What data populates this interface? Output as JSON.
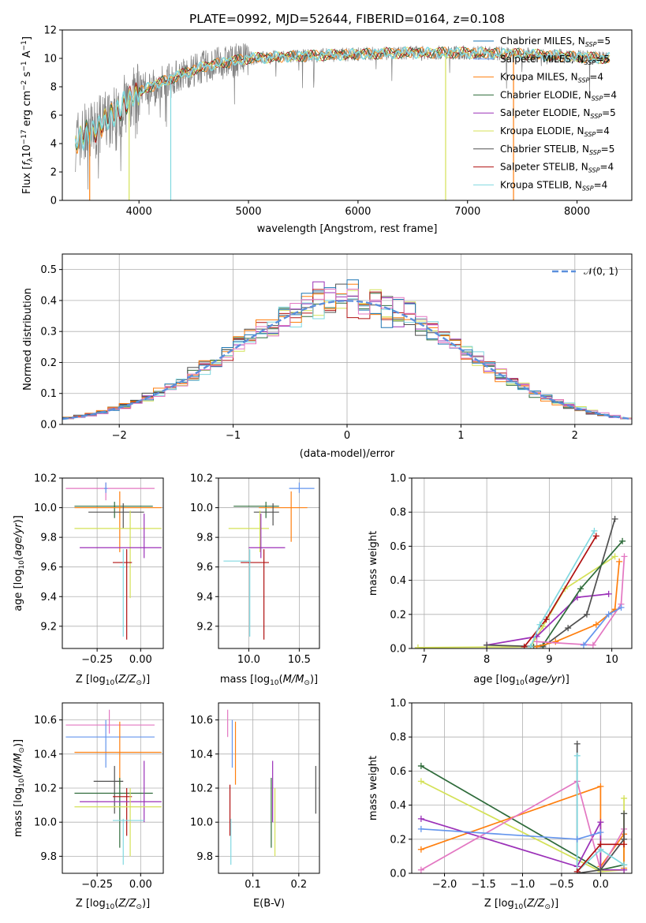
{
  "colors": {
    "Chabrier MILES": "#1f77b4",
    "Salpeter MILES": "#6495ed",
    "Kroupa MILES": "#ff7f0e",
    "Chabrier ELODIE": "#2e6b3a",
    "Salpeter ELODIE": "#9b30b8",
    "Kroupa ELODIE": "#d4e157",
    "Chabrier STELIB": "#505050",
    "Salpeter STELIB": "#b01010",
    "Kroupa STELIB": "#80d8e0",
    "pink": "#e377c2",
    "gauss": "#5b8fdc",
    "raw": "#808080",
    "green2": "#5a8a5a"
  },
  "chart_data": [
    {
      "id": "spectrum",
      "type": "line",
      "title": "PLATE=0992, MJD=52644, FIBERID=0164, z=0.108",
      "xlabel": "wavelength [Angstrom, rest frame]",
      "ylabel": "Flux [f_λ10^-17 erg cm^-2 s^-1 A^-1]",
      "xlim": [
        3300,
        8500
      ],
      "ylim": [
        0,
        12
      ],
      "xticks": [
        4000,
        5000,
        6000,
        7000,
        8000
      ],
      "yticks": [
        0,
        2,
        4,
        6,
        8,
        10,
        12
      ],
      "grid": false,
      "legend_position": "right",
      "legend": [
        {
          "pre": "Chabrier MILES, N",
          "sub": "SSP",
          "post": "=5"
        },
        {
          "pre": "Salpeter MILES, N",
          "sub": "SSP",
          "post": "=5"
        },
        {
          "pre": "Kroupa MILES, N",
          "sub": "SSP",
          "post": "=4"
        },
        {
          "pre": "Chabrier ELODIE, N",
          "sub": "SSP",
          "post": "=4"
        },
        {
          "pre": "Salpeter ELODIE, N",
          "sub": "SSP",
          "post": "=5"
        },
        {
          "pre": "Kroupa ELODIE, N",
          "sub": "SSP",
          "post": "=4"
        },
        {
          "pre": "Chabrier STELIB, N",
          "sub": "SSP",
          "post": "=5"
        },
        {
          "pre": "Salpeter STELIB, N",
          "sub": "SSP",
          "post": "=4"
        },
        {
          "pre": "Kroupa STELIB, N",
          "sub": "SSP",
          "post": "=4"
        }
      ],
      "continuum": {
        "x": [
          3420,
          3500,
          3600,
          3700,
          3800,
          3900,
          4000,
          4100,
          4300,
          4500,
          4700,
          5000,
          5300,
          5600,
          6000,
          6500,
          7000,
          7500,
          8000,
          8300
        ],
        "y": [
          4.2,
          4.6,
          5.0,
          5.6,
          6.3,
          7.0,
          7.6,
          8.0,
          8.6,
          9.2,
          9.6,
          10.0,
          10.1,
          10.2,
          10.3,
          10.4,
          10.4,
          10.3,
          10.1,
          10.0
        ]
      },
      "spikes_down": [
        {
          "x": 3550,
          "y": 0
        },
        {
          "x": 3910,
          "y": 0
        },
        {
          "x": 4290,
          "y": 0
        },
        {
          "x": 6800,
          "y": 0
        },
        {
          "x": 7420,
          "y": 0
        }
      ]
    },
    {
      "id": "residuals",
      "type": "histogram",
      "xlabel": "(data-model)/error",
      "ylabel": "Normed distribution",
      "xlim": [
        -2.5,
        2.5
      ],
      "ylim": [
        0,
        0.55
      ],
      "xticks": [
        -2,
        -1,
        0,
        1,
        2
      ],
      "yticks": [
        0.0,
        0.1,
        0.2,
        0.3,
        0.4,
        0.5
      ],
      "grid": true,
      "legend": [
        "N(0,1)"
      ],
      "legend_position": "top-right",
      "bin_width": 0.1
    },
    {
      "id": "age-vs-Z",
      "type": "scatter",
      "xlabel": "Z [log10(Z/Z_sun)]",
      "ylabel": "age [log10(age/yr)]",
      "xlim": [
        -0.45,
        0.13
      ],
      "ylim": [
        9.05,
        10.2
      ],
      "xticks": [
        -0.25,
        0.0
      ],
      "yticks": [
        9.2,
        9.4,
        9.6,
        9.8,
        10.0,
        10.2
      ],
      "grid": true,
      "points": [
        {
          "c": "pink",
          "x": -0.2,
          "xe": [
            -0.43,
            0.08
          ],
          "y": 10.13,
          "ye": [
            10.05,
            10.17
          ]
        },
        {
          "c": "Salpeter MILES",
          "x": -0.2,
          "xe": [
            -0.21,
            -0.19
          ],
          "y": 10.13,
          "ye": [
            10.1,
            10.17
          ]
        },
        {
          "c": "Chabrier ELODIE",
          "x": -0.15,
          "xe": [
            -0.38,
            0.07
          ],
          "y": 10.01,
          "ye": [
            9.93,
            10.04
          ]
        },
        {
          "c": "Kroupa MILES",
          "x": -0.12,
          "xe": [
            -0.38,
            0.12
          ],
          "y": 10.0,
          "ye": [
            9.7,
            10.11
          ]
        },
        {
          "c": "Chabrier STELIB",
          "x": -0.1,
          "xe": [
            -0.3,
            0.02
          ],
          "y": 9.97,
          "ye": [
            9.86,
            10.03
          ]
        },
        {
          "c": "Kroupa ELODIE",
          "x": -0.06,
          "xe": [
            -0.38,
            0.12
          ],
          "y": 9.86,
          "ye": [
            9.39,
            9.98
          ]
        },
        {
          "c": "Salpeter ELODIE",
          "x": 0.02,
          "xe": [
            -0.35,
            0.12
          ],
          "y": 9.73,
          "ye": [
            9.66,
            9.96
          ]
        },
        {
          "c": "Salpeter STELIB",
          "x": -0.08,
          "xe": [
            -0.16,
            -0.05
          ],
          "y": 9.63,
          "ye": [
            9.11,
            9.72
          ]
        },
        {
          "c": "Kroupa STELIB",
          "x": -0.1,
          "xe": [
            -0.12,
            -0.09
          ],
          "y": 9.6,
          "ye": [
            9.13,
            9.72
          ]
        }
      ]
    },
    {
      "id": "age-vs-mass",
      "type": "scatter",
      "xlabel": "mass [log10(M/M_sun)]",
      "ylabel": "",
      "xlim": [
        9.7,
        10.7
      ],
      "ylim": [
        9.05,
        10.2
      ],
      "xticks": [
        10.0,
        10.5
      ],
      "yticks": [
        9.2,
        9.4,
        9.6,
        9.8,
        10.0,
        10.2
      ],
      "grid": true,
      "points": [
        {
          "c": "Salpeter MILES",
          "x": 10.5,
          "xe": [
            10.4,
            10.65
          ],
          "y": 10.13,
          "ye": [
            10.1,
            10.17
          ]
        },
        {
          "c": "Chabrier ELODIE",
          "x": 10.17,
          "xe": [
            9.85,
            10.3
          ],
          "y": 10.01,
          "ye": [
            9.93,
            10.04
          ]
        },
        {
          "c": "Kroupa MILES",
          "x": 10.42,
          "xe": [
            10.1,
            10.58
          ],
          "y": 10.0,
          "ye": [
            9.77,
            10.11
          ]
        },
        {
          "c": "Chabrier STELIB",
          "x": 10.24,
          "xe": [
            10.05,
            10.3
          ],
          "y": 9.97,
          "ye": [
            9.88,
            10.03
          ]
        },
        {
          "c": "Kroupa ELODIE",
          "x": 10.11,
          "xe": [
            9.8,
            10.2
          ],
          "y": 9.86,
          "ye": [
            9.7,
            9.98
          ]
        },
        {
          "c": "Salpeter ELODIE",
          "x": 10.12,
          "xe": [
            10.0,
            10.36
          ],
          "y": 9.73,
          "ye": [
            9.66,
            9.96
          ]
        },
        {
          "c": "Salpeter STELIB",
          "x": 10.15,
          "xe": [
            9.92,
            10.2
          ],
          "y": 9.63,
          "ye": [
            9.11,
            9.72
          ]
        },
        {
          "c": "Kroupa STELIB",
          "x": 10.01,
          "xe": [
            9.75,
            10.02
          ],
          "y": 9.64,
          "ye": [
            9.13,
            9.72
          ]
        }
      ]
    },
    {
      "id": "weight-vs-age",
      "type": "line",
      "xlabel": "age [log10(age/yr)]",
      "ylabel": "mass weight",
      "xlim": [
        6.8,
        10.32
      ],
      "ylim": [
        0,
        1
      ],
      "xticks": [
        7,
        8,
        9,
        10
      ],
      "yticks": [
        0.0,
        0.2,
        0.4,
        0.6,
        0.8,
        1.0
      ],
      "grid": true,
      "series": [
        {
          "c": "Kroupa ELODIE",
          "x": [
            6.9,
            8.7,
            8.9,
            9.25,
            10.05
          ],
          "y": [
            0.005,
            0.01,
            0.13,
            0.35,
            0.54
          ]
        },
        {
          "c": "Salpeter ELODIE",
          "x": [
            8.0,
            8.8,
            9.45,
            9.95
          ],
          "y": [
            0.02,
            0.07,
            0.3,
            0.32
          ]
        },
        {
          "c": "Chabrier STELIB",
          "x": [
            8.0,
            8.9,
            9.3,
            9.6,
            10.05
          ],
          "y": [
            0.02,
            0.01,
            0.12,
            0.2,
            0.76
          ]
        },
        {
          "c": "Chabrier ELODIE",
          "x": [
            8.75,
            8.9,
            9.5,
            10.17
          ],
          "y": [
            0.01,
            0.02,
            0.35,
            0.63
          ]
        },
        {
          "c": "Salpeter STELIB",
          "x": [
            8.6,
            8.95,
            9.75
          ],
          "y": [
            0.01,
            0.17,
            0.66
          ]
        },
        {
          "c": "Kroupa STELIB",
          "x": [
            8.7,
            8.85,
            9.72
          ],
          "y": [
            0.01,
            0.14,
            0.69
          ]
        },
        {
          "c": "Kroupa MILES",
          "x": [
            8.8,
            9.1,
            9.75,
            10.05,
            10.12
          ],
          "y": [
            0.01,
            0.04,
            0.14,
            0.23,
            0.51
          ]
        },
        {
          "c": "pink",
          "x": [
            8.8,
            9.7,
            10.15,
            10.2
          ],
          "y": [
            0.04,
            0.02,
            0.26,
            0.54
          ]
        },
        {
          "c": "Salpeter MILES",
          "x": [
            9.55,
            9.95,
            10.15
          ],
          "y": [
            0.02,
            0.2,
            0.24
          ]
        }
      ]
    },
    {
      "id": "mass-vs-Z",
      "type": "scatter",
      "xlabel": "Z [log10(Z/Z_sun)]",
      "ylabel": "mass [log10(M/M_sun)]",
      "xlim": [
        -0.45,
        0.13
      ],
      "ylim": [
        9.7,
        10.7
      ],
      "xticks": [
        -0.25,
        0.0
      ],
      "yticks": [
        9.8,
        10.0,
        10.2,
        10.4,
        10.6
      ],
      "grid": true,
      "points": [
        {
          "c": "pink",
          "x": -0.18,
          "xe": [
            -0.43,
            0.08
          ],
          "y": 10.57,
          "ye": [
            10.52,
            10.66
          ]
        },
        {
          "c": "Salpeter MILES",
          "x": -0.2,
          "xe": [
            -0.43,
            0.08
          ],
          "y": 10.5,
          "ye": [
            10.32,
            10.6
          ]
        },
        {
          "c": "Kroupa MILES",
          "x": -0.12,
          "xe": [
            -0.38,
            0.12
          ],
          "y": 10.41,
          "ye": [
            10.22,
            10.59
          ]
        },
        {
          "c": "Chabrier STELIB",
          "x": -0.15,
          "xe": [
            -0.27,
            -0.1
          ],
          "y": 10.24,
          "ye": [
            10.05,
            10.33
          ]
        },
        {
          "c": "Chabrier ELODIE",
          "x": -0.12,
          "xe": [
            -0.38,
            0.07
          ],
          "y": 10.17,
          "ye": [
            9.85,
            10.26
          ]
        },
        {
          "c": "Salpeter STELIB",
          "x": -0.08,
          "xe": [
            -0.16,
            -0.05
          ],
          "y": 10.15,
          "ye": [
            9.92,
            10.2
          ]
        },
        {
          "c": "Salpeter ELODIE",
          "x": 0.02,
          "xe": [
            -0.35,
            0.12
          ],
          "y": 10.12,
          "ye": [
            10.0,
            10.36
          ]
        },
        {
          "c": "Kroupa ELODIE",
          "x": -0.06,
          "xe": [
            -0.38,
            0.12
          ],
          "y": 10.09,
          "ye": [
            9.8,
            10.2
          ]
        },
        {
          "c": "Kroupa STELIB",
          "x": -0.1,
          "xe": [
            -0.16,
            0.02
          ],
          "y": 10.01,
          "ye": [
            9.75,
            10.02
          ]
        }
      ]
    },
    {
      "id": "mass-vs-ebv",
      "type": "scatter",
      "xlabel": "E(B-V)",
      "ylabel": "",
      "xlim": [
        0.025,
        0.245
      ],
      "ylim": [
        9.7,
        10.7
      ],
      "xticks": [
        0.1,
        0.2
      ],
      "yticks": [
        9.8,
        10.0,
        10.2,
        10.4,
        10.6
      ],
      "grid": true,
      "points": [
        {
          "c": "pink",
          "x": 0.045,
          "ye": [
            10.5,
            10.66
          ]
        },
        {
          "c": "Kroupa MILES",
          "x": 0.062,
          "ye": [
            10.22,
            10.59
          ]
        },
        {
          "c": "Salpeter MILES",
          "x": 0.055,
          "ye": [
            10.32,
            10.6
          ]
        },
        {
          "c": "Salpeter STELIB",
          "x": 0.05,
          "ye": [
            9.92,
            10.22
          ]
        },
        {
          "c": "Kroupa STELIB",
          "x": 0.052,
          "ye": [
            9.75,
            10.02
          ]
        },
        {
          "c": "Chabrier ELODIE",
          "x": 0.14,
          "ye": [
            9.85,
            10.26
          ]
        },
        {
          "c": "Salpeter ELODIE",
          "x": 0.143,
          "ye": [
            10.0,
            10.36
          ]
        },
        {
          "c": "Kroupa ELODIE",
          "x": 0.148,
          "ye": [
            9.8,
            10.2
          ]
        },
        {
          "c": "Chabrier STELIB",
          "x": 0.237,
          "ye": [
            10.05,
            10.33
          ]
        }
      ]
    },
    {
      "id": "weight-vs-Z",
      "type": "line",
      "xlabel": "Z [log10(Z/Z_sun)]",
      "ylabel": "mass weight",
      "xlim": [
        -2.42,
        0.4
      ],
      "ylim": [
        0,
        1
      ],
      "xticks": [
        -2.0,
        -1.5,
        -1.0,
        -0.5,
        0.0
      ],
      "yticks": [
        0.0,
        0.2,
        0.4,
        0.6,
        0.8,
        1.0
      ],
      "grid": true,
      "series": [
        {
          "c": "Chabrier ELODIE",
          "x": [
            -2.3,
            0.0,
            0.3,
            0.3
          ],
          "y": [
            0.63,
            0.02,
            0.05,
            0.35
          ]
        },
        {
          "c": "Kroupa ELODIE",
          "x": [
            -2.3,
            0.0,
            0.3,
            0.3
          ],
          "y": [
            0.54,
            0.01,
            0.02,
            0.44
          ]
        },
        {
          "c": "Kroupa MILES",
          "x": [
            -2.3,
            0.0,
            0.0,
            0.3,
            0.3
          ],
          "y": [
            0.14,
            0.51,
            0.04,
            0.23,
            0.03
          ]
        },
        {
          "c": "Salpeter ELODIE",
          "x": [
            -2.3,
            -0.3,
            0.0,
            0.0,
            0.3
          ],
          "y": [
            0.32,
            0.04,
            0.3,
            0.02,
            0.02
          ]
        },
        {
          "c": "pink",
          "x": [
            -2.3,
            -0.3,
            0.0,
            0.3
          ],
          "y": [
            0.02,
            0.54,
            0.02,
            0.26
          ]
        },
        {
          "c": "Chabrier STELIB",
          "x": [
            -0.3,
            -0.3,
            0.0,
            0.3,
            0.3
          ],
          "y": [
            0.76,
            0.0,
            0.02,
            0.2,
            0.35
          ]
        },
        {
          "c": "Kroupa STELIB",
          "x": [
            -0.3,
            -0.3,
            0.0,
            0.3
          ],
          "y": [
            0.69,
            0.01,
            0.14,
            0.05
          ]
        },
        {
          "c": "Salpeter STELIB",
          "x": [
            -0.3,
            0.0,
            0.3
          ],
          "y": [
            0.01,
            0.17,
            0.17
          ]
        },
        {
          "c": "Salpeter MILES",
          "x": [
            -2.3,
            -0.3,
            0.0
          ],
          "y": [
            0.26,
            0.2,
            0.24
          ]
        }
      ]
    }
  ]
}
